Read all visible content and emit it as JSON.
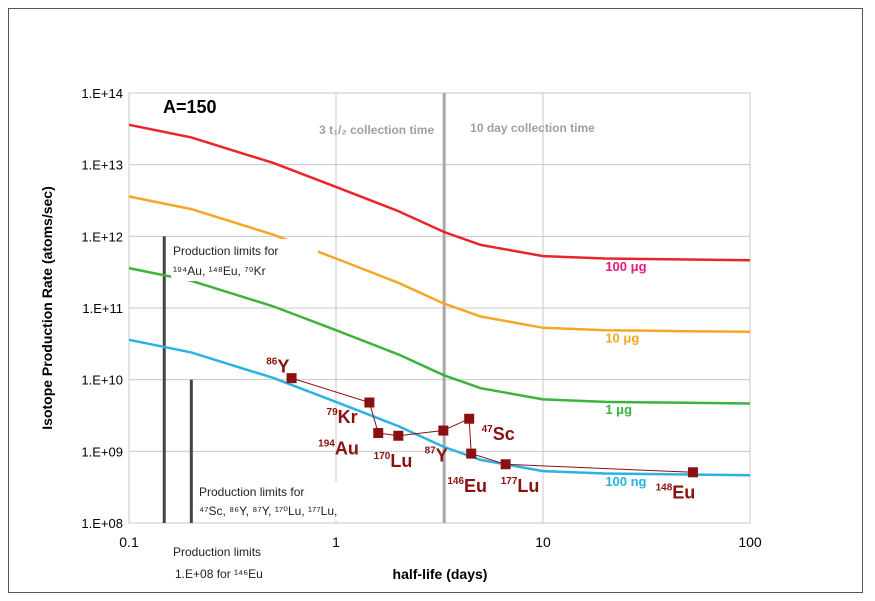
{
  "chart_data": {
    "type": "line",
    "title": "A=150",
    "xlabel": "half-life (days)",
    "ylabel": "Isotope Production Rate (atoms/sec)",
    "xscale": "log",
    "yscale": "log",
    "xlim": [
      0.1,
      100
    ],
    "ylim": [
      100000000.0,
      100000000000000.0
    ],
    "x_ticks": [
      {
        "value": 0.1,
        "label": "0.1"
      },
      {
        "value": 1,
        "label": "1"
      },
      {
        "value": 10,
        "label": "10"
      },
      {
        "value": 100,
        "label": "100"
      }
    ],
    "y_ticks": [
      {
        "value": 100000000.0,
        "label": "1.E+08"
      },
      {
        "value": 1000000000.0,
        "label": "1.E+09"
      },
      {
        "value": 10000000000.0,
        "label": "1.E+10"
      },
      {
        "value": 100000000000.0,
        "label": "1.E+11"
      },
      {
        "value": 1000000000000.0,
        "label": "1.E+12"
      },
      {
        "value": 10000000000000.0,
        "label": "1.E+13"
      },
      {
        "value": 100000000000000.0,
        "label": "1.E+14"
      }
    ],
    "grid": true,
    "series": [
      {
        "name": "100 μg",
        "color": "#e8262a",
        "x": [
          0.1,
          0.2,
          0.5,
          1,
          2,
          3.33,
          5,
          10,
          20,
          50,
          100
        ],
        "y": [
          36000000000000.0,
          24000000000000.0,
          10500000000000.0,
          4900000000000.0,
          2250000000000.0,
          1150000000000.0,
          760000000000.0,
          530000000000.0,
          490000000000.0,
          475000000000.0,
          465000000000.0
        ]
      },
      {
        "name": "10 μg",
        "color": "#f7a628",
        "x": [
          0.1,
          0.2,
          0.5,
          1,
          2,
          3.33,
          5,
          10,
          20,
          50,
          100
        ],
        "y": [
          3600000000000.0,
          2400000000000.0,
          1050000000000.0,
          490000000000.0,
          225000000000.0,
          115000000000.0,
          76000000000.0,
          53000000000.0,
          49000000000.0,
          47500000000.0,
          46500000000.0
        ]
      },
      {
        "name": "1 μg",
        "color": "#3cb33c",
        "x": [
          0.1,
          0.2,
          0.5,
          1,
          2,
          3.33,
          5,
          10,
          20,
          50,
          100
        ],
        "y": [
          360000000000.0,
          240000000000.0,
          105000000000.0,
          49000000000.0,
          22500000000.0,
          11500000000.0,
          7600000000.0,
          5300000000.0,
          4900000000.0,
          4750000000.0,
          4650000000.0
        ]
      },
      {
        "name": "100 ng",
        "color": "#29b2e4",
        "x": [
          0.1,
          0.2,
          0.5,
          1,
          2,
          3.33,
          5,
          10,
          20,
          50,
          100
        ],
        "y": [
          36000000000.0,
          24000000000.0,
          10500000000.0,
          4900000000.0,
          2250000000.0,
          1150000000.0,
          760000000.0,
          530000000.0,
          490000000.0,
          475000000.0,
          465000000.0
        ]
      },
      {
        "name": "isotopes",
        "color": "#8b1010",
        "marker": "square",
        "x": [
          0.61,
          1.45,
          1.6,
          2.0,
          3.3,
          4.4,
          4.5,
          6.6,
          53
        ],
        "y": [
          10500000000.0,
          4800000000.0,
          1800000000.0,
          1650000000.0,
          1950000000.0,
          2850000000.0,
          930000000.0,
          660000000.0,
          510000000.0
        ]
      }
    ],
    "curve_labels": [
      {
        "text": "100 μg",
        "color": "#e8187d",
        "x": 20,
        "y": 330000000000.0
      },
      {
        "text": "10 μg",
        "color": "#f7a628",
        "x": 20,
        "y": 33000000000.0
      },
      {
        "text": "1 μg",
        "color": "#3cb33c",
        "x": 20,
        "y": 3300000000.0
      },
      {
        "text": "100 ng",
        "color": "#29b2e4",
        "x": 20,
        "y": 330000000.0
      }
    ],
    "isotope_labels": [
      {
        "mass": "86",
        "symbol": "Y",
        "x": 0.46,
        "y": 12500000000.0
      },
      {
        "mass": "79",
        "symbol": "Kr",
        "x": 0.9,
        "y": 2500000000.0
      },
      {
        "mass": "194",
        "symbol": "Au",
        "x": 0.82,
        "y": 900000000.0
      },
      {
        "mass": "170",
        "symbol": "Lu",
        "x": 1.52,
        "y": 600000000.0
      },
      {
        "mass": "87",
        "symbol": "Y",
        "x": 2.68,
        "y": 720000000.0
      },
      {
        "mass": "146",
        "symbol": "Eu",
        "x": 3.45,
        "y": 270000000.0
      },
      {
        "mass": "47",
        "symbol": "Sc",
        "x": 5.05,
        "y": 1450000000.0
      },
      {
        "mass": "177",
        "symbol": "Lu",
        "x": 6.25,
        "y": 270000000.0
      },
      {
        "mass": "148",
        "symbol": "Eu",
        "x": 35,
        "y": 220000000.0
      }
    ],
    "collection_boundary_x": 3.33,
    "region_labels": {
      "left": "3 t₁/₂ collection time",
      "right": "10 day collection time"
    },
    "production_limit_bars": [
      {
        "x": 0.148,
        "y_top": 1000000000000.0,
        "y_bottom": 100000000.0
      },
      {
        "x": 0.2,
        "y_top": 10000000000.0,
        "y_bottom": 100000000.0
      }
    ],
    "annotations": {
      "limits_1_line1": "Production limits for",
      "limits_1_line2": "¹⁹⁴Au, ¹⁴⁸Eu, ⁷⁹Kr",
      "limits_2_line1": "Production limits for",
      "limits_2_line2": "⁴⁷Sc, ⁸⁶Y, ⁸⁷Y, ¹⁷⁰Lu, ¹⁷⁷Lu,",
      "bottom_line1": "Production limits",
      "bottom_line2": "1.E+08 for ¹⁴⁶Eu"
    }
  }
}
